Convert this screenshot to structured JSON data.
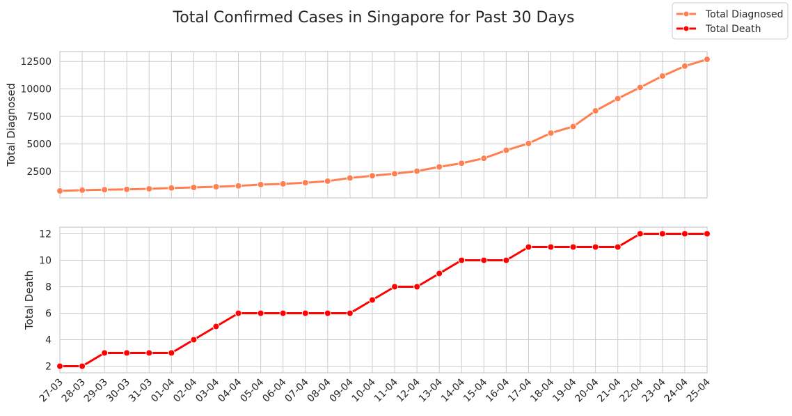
{
  "chart_data": {
    "type": "line",
    "title": "Total Confirmed Cases in Singapore for Past 30 Days",
    "grid": true,
    "legend_position": "top-right",
    "x": [
      "27-03",
      "28-03",
      "29-03",
      "30-03",
      "31-03",
      "01-04",
      "02-04",
      "03-04",
      "04-04",
      "05-04",
      "06-04",
      "07-04",
      "08-04",
      "09-04",
      "10-04",
      "11-04",
      "12-04",
      "13-04",
      "14-04",
      "15-04",
      "16-04",
      "17-04",
      "18-04",
      "19-04",
      "20-04",
      "21-04",
      "22-04",
      "23-04",
      "24-04",
      "25-04"
    ],
    "panels": [
      {
        "ylabel": "Total Diagnosed",
        "ylim": [
          100,
          13400
        ],
        "yticks": [
          2500,
          5000,
          7500,
          10000,
          12500
        ],
        "series": [
          {
            "name": "Total Diagnosed",
            "color": "#ff7f50",
            "values": [
              732,
              802,
              844,
              879,
              926,
              1000,
              1049,
              1114,
              1189,
              1309,
              1375,
              1481,
              1623,
              1910,
              2108,
              2299,
              2532,
              2918,
              3252,
              3699,
              4427,
              5050,
              5992,
              6588,
              8014,
              9125,
              10141,
              11178,
              12075,
              12693
            ]
          }
        ]
      },
      {
        "ylabel": "Total Death",
        "ylim": [
          1.5,
          12.5
        ],
        "yticks": [
          2,
          4,
          6,
          8,
          10,
          12
        ],
        "series": [
          {
            "name": "Total Death",
            "color": "#ff0000",
            "values": [
              2,
              2,
              3,
              3,
              3,
              3,
              4,
              5,
              6,
              6,
              6,
              6,
              6,
              6,
              7,
              8,
              8,
              9,
              10,
              10,
              10,
              11,
              11,
              11,
              11,
              11,
              12,
              12,
              12,
              12
            ]
          }
        ]
      }
    ]
  }
}
